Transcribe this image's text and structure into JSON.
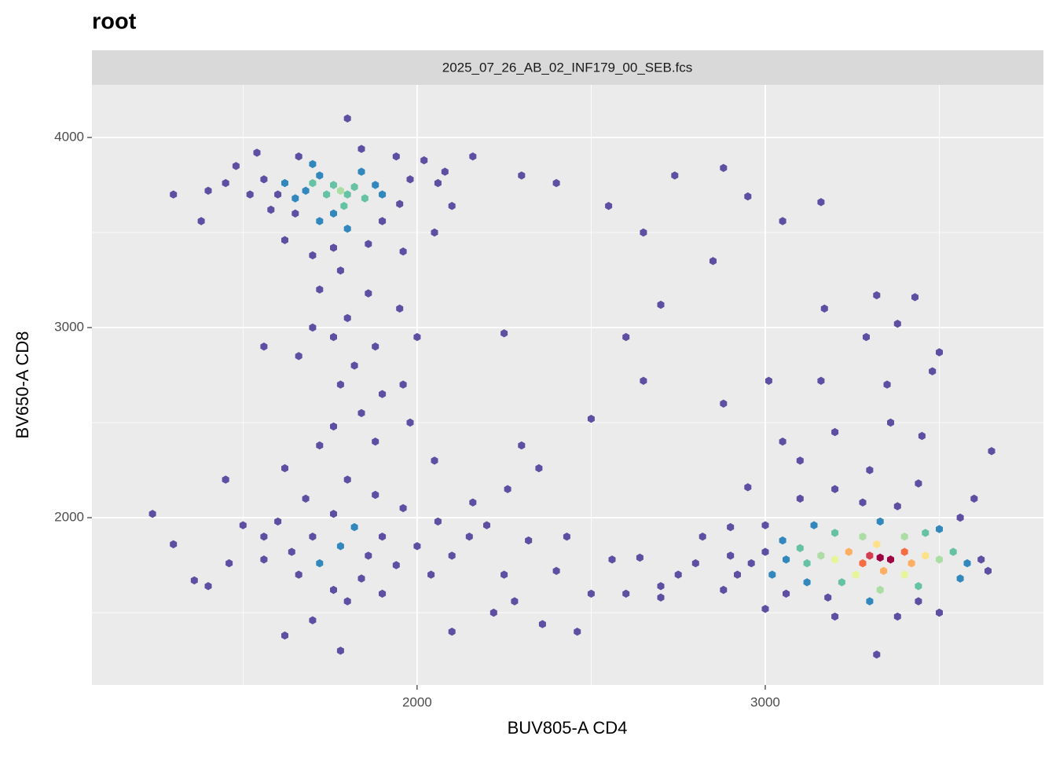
{
  "chart_data": {
    "type": "hexbin",
    "title": "root",
    "facet_label": "2025_07_26_AB_02_INF179_00_SEB.fcs",
    "x_label": "BUV805-A CD4",
    "y_label": "BV650-A CD8",
    "xlim": [
      1066,
      3799
    ],
    "ylim": [
      1120,
      4277
    ],
    "xticks": [
      2000,
      3000
    ],
    "yticks": [
      2000,
      3000,
      4000
    ],
    "x_minor_grid": [
      1500,
      2500,
      3500
    ],
    "y_minor_grid": [
      1500,
      2500,
      3500
    ],
    "grid": true,
    "palette": [
      "#5e4fa2",
      "#3288bd",
      "#66c2a5",
      "#abdda4",
      "#e6f598",
      "#fee08b",
      "#fdae61",
      "#f46d43",
      "#d53e4f",
      "#9e0142"
    ],
    "points": [
      [
        1780,
        3720,
        12
      ],
      [
        1760,
        3750,
        11
      ],
      [
        1800,
        3700,
        11
      ],
      [
        1740,
        3700,
        9
      ],
      [
        1820,
        3740,
        10
      ],
      [
        1700,
        3760,
        8
      ],
      [
        1850,
        3680,
        8
      ],
      [
        1680,
        3720,
        7
      ],
      [
        1880,
        3750,
        6
      ],
      [
        1720,
        3800,
        7
      ],
      [
        1790,
        3640,
        8
      ],
      [
        1760,
        3600,
        6
      ],
      [
        1650,
        3680,
        5
      ],
      [
        1900,
        3700,
        5
      ],
      [
        1620,
        3760,
        4
      ],
      [
        1840,
        3820,
        5
      ],
      [
        1700,
        3860,
        4
      ],
      [
        1600,
        3700,
        3
      ],
      [
        1560,
        3780,
        3
      ],
      [
        1950,
        3650,
        3
      ],
      [
        1980,
        3780,
        3
      ],
      [
        1900,
        3560,
        3
      ],
      [
        1800,
        3520,
        4
      ],
      [
        1720,
        3560,
        4
      ],
      [
        1650,
        3600,
        3
      ],
      [
        1580,
        3620,
        2
      ],
      [
        1520,
        3700,
        2
      ],
      [
        1480,
        3850,
        2
      ],
      [
        1450,
        3760,
        1
      ],
      [
        2020,
        3880,
        2
      ],
      [
        2060,
        3760,
        2
      ],
      [
        2100,
        3640,
        1
      ],
      [
        2080,
        3820,
        1
      ],
      [
        1940,
        3900,
        2
      ],
      [
        1840,
        3940,
        1
      ],
      [
        1660,
        3900,
        2
      ],
      [
        1540,
        3920,
        1
      ],
      [
        1400,
        3720,
        1
      ],
      [
        1300,
        3700,
        1
      ],
      [
        1760,
        3420,
        2
      ],
      [
        1700,
        3380,
        2
      ],
      [
        1860,
        3440,
        2
      ],
      [
        1960,
        3400,
        1
      ],
      [
        1620,
        3460,
        1
      ],
      [
        1800,
        4100,
        1
      ],
      [
        2050,
        3500,
        1
      ],
      [
        2160,
        3900,
        1
      ],
      [
        1380,
        3560,
        1
      ],
      [
        1780,
        3300,
        2
      ],
      [
        1720,
        3200,
        1
      ],
      [
        1860,
        3180,
        1
      ],
      [
        1800,
        3050,
        1
      ],
      [
        1760,
        2950,
        2
      ],
      [
        1700,
        3000,
        1
      ],
      [
        1880,
        2900,
        1
      ],
      [
        1820,
        2800,
        1
      ],
      [
        1660,
        2850,
        1
      ],
      [
        1900,
        2650,
        2
      ],
      [
        1780,
        2700,
        1
      ],
      [
        1840,
        2550,
        1
      ],
      [
        1760,
        2480,
        2
      ],
      [
        1880,
        2400,
        1
      ],
      [
        1720,
        2380,
        1
      ],
      [
        1560,
        2900,
        1
      ],
      [
        1960,
        2700,
        1
      ],
      [
        1950,
        3100,
        1
      ],
      [
        2000,
        2950,
        1
      ],
      [
        1760,
        2020,
        3
      ],
      [
        1820,
        1950,
        4
      ],
      [
        1700,
        1900,
        3
      ],
      [
        1780,
        1850,
        4
      ],
      [
        1860,
        1800,
        3
      ],
      [
        1640,
        1820,
        2
      ],
      [
        1720,
        1760,
        4
      ],
      [
        1900,
        1900,
        3
      ],
      [
        1960,
        2050,
        2
      ],
      [
        1600,
        1980,
        2
      ],
      [
        1560,
        1900,
        2
      ],
      [
        1680,
        2100,
        3
      ],
      [
        1880,
        2120,
        3
      ],
      [
        1800,
        2200,
        2
      ],
      [
        1940,
        1750,
        2
      ],
      [
        1840,
        1680,
        3
      ],
      [
        1760,
        1620,
        2
      ],
      [
        1660,
        1700,
        2
      ],
      [
        1560,
        1780,
        1
      ],
      [
        1500,
        1960,
        1
      ],
      [
        1460,
        1760,
        1
      ],
      [
        2000,
        1850,
        2
      ],
      [
        2060,
        1980,
        1
      ],
      [
        2040,
        1700,
        2
      ],
      [
        2100,
        1800,
        1
      ],
      [
        2150,
        1900,
        1
      ],
      [
        1900,
        1600,
        2
      ],
      [
        1800,
        1560,
        1
      ],
      [
        1700,
        1460,
        1
      ],
      [
        1620,
        1380,
        1
      ],
      [
        1780,
        1300,
        1
      ],
      [
        1360,
        1670,
        1
      ],
      [
        1300,
        1860,
        1
      ],
      [
        1240,
        2020,
        1
      ],
      [
        1400,
        1640,
        1
      ],
      [
        1450,
        2200,
        1
      ],
      [
        1620,
        2260,
        1
      ],
      [
        2200,
        1960,
        1
      ],
      [
        2250,
        1700,
        1
      ],
      [
        2320,
        1880,
        1
      ],
      [
        2280,
        1560,
        1
      ],
      [
        2400,
        1720,
        1
      ],
      [
        2360,
        1440,
        1
      ],
      [
        2460,
        1400,
        1
      ],
      [
        2430,
        1900,
        1
      ],
      [
        2100,
        1400,
        1
      ],
      [
        2220,
        1500,
        1
      ],
      [
        2500,
        1600,
        1
      ],
      [
        2160,
        2080,
        1
      ],
      [
        2260,
        2150,
        1
      ],
      [
        2050,
        2300,
        1
      ],
      [
        1980,
        2500,
        1
      ],
      [
        2300,
        2380,
        1
      ],
      [
        2300,
        3800,
        1
      ],
      [
        2400,
        3760,
        1
      ],
      [
        2550,
        3640,
        1
      ],
      [
        2650,
        3500,
        1
      ],
      [
        2740,
        3800,
        1
      ],
      [
        2880,
        3840,
        1
      ],
      [
        2950,
        3690,
        1
      ],
      [
        2850,
        3350,
        1
      ],
      [
        2700,
        3120,
        1
      ],
      [
        2600,
        2950,
        1
      ],
      [
        2650,
        2720,
        1
      ],
      [
        2880,
        2600,
        1
      ],
      [
        3050,
        3560,
        1
      ],
      [
        3160,
        3660,
        1
      ],
      [
        3170,
        3100,
        1
      ],
      [
        3320,
        3170,
        1
      ],
      [
        3430,
        3160,
        1
      ],
      [
        3380,
        3020,
        1
      ],
      [
        3500,
        2870,
        1
      ],
      [
        3290,
        2950,
        1
      ],
      [
        3010,
        2720,
        1
      ],
      [
        3160,
        2720,
        1
      ],
      [
        3350,
        2700,
        1
      ],
      [
        3480,
        2770,
        1
      ],
      [
        2250,
        2970,
        1
      ],
      [
        2500,
        2520,
        1
      ],
      [
        2350,
        2260,
        1
      ],
      [
        3330,
        1790,
        40
      ],
      [
        3300,
        1800,
        36
      ],
      [
        3360,
        1780,
        38
      ],
      [
        3280,
        1760,
        30
      ],
      [
        3400,
        1820,
        30
      ],
      [
        3240,
        1820,
        26
      ],
      [
        3420,
        1760,
        28
      ],
      [
        3200,
        1780,
        20
      ],
      [
        3460,
        1800,
        22
      ],
      [
        3320,
        1860,
        24
      ],
      [
        3340,
        1720,
        26
      ],
      [
        3160,
        1800,
        15
      ],
      [
        3500,
        1780,
        14
      ],
      [
        3260,
        1700,
        18
      ],
      [
        3400,
        1700,
        18
      ],
      [
        3280,
        1900,
        14
      ],
      [
        3400,
        1900,
        14
      ],
      [
        3120,
        1760,
        10
      ],
      [
        3540,
        1820,
        9
      ],
      [
        3100,
        1840,
        8
      ],
      [
        3200,
        1920,
        8
      ],
      [
        3460,
        1920,
        8
      ],
      [
        3220,
        1660,
        10
      ],
      [
        3440,
        1640,
        9
      ],
      [
        3330,
        1620,
        12
      ],
      [
        3060,
        1780,
        6
      ],
      [
        3580,
        1760,
        5
      ],
      [
        3050,
        1880,
        4
      ],
      [
        3140,
        1960,
        4
      ],
      [
        3330,
        1980,
        5
      ],
      [
        3500,
        1940,
        4
      ],
      [
        3020,
        1700,
        4
      ],
      [
        3120,
        1660,
        5
      ],
      [
        3560,
        1680,
        4
      ],
      [
        3300,
        1560,
        4
      ],
      [
        3180,
        1580,
        3
      ],
      [
        3440,
        1560,
        3
      ],
      [
        3000,
        1820,
        3
      ],
      [
        2960,
        1760,
        2
      ],
      [
        3620,
        1780,
        2
      ],
      [
        3640,
        1720,
        1
      ],
      [
        2920,
        1700,
        2
      ],
      [
        2900,
        1800,
        2
      ],
      [
        3000,
        1960,
        2
      ],
      [
        3280,
        2080,
        2
      ],
      [
        3380,
        2060,
        2
      ],
      [
        3200,
        2150,
        1
      ],
      [
        3440,
        2180,
        1
      ],
      [
        3300,
        2250,
        1
      ],
      [
        3100,
        2100,
        1
      ],
      [
        3560,
        2000,
        1
      ],
      [
        3600,
        2100,
        1
      ],
      [
        3060,
        1600,
        1
      ],
      [
        3000,
        1520,
        1
      ],
      [
        3380,
        1480,
        1
      ],
      [
        3200,
        1480,
        1
      ],
      [
        3500,
        1500,
        1
      ],
      [
        3320,
        1280,
        1
      ],
      [
        2880,
        1620,
        1
      ],
      [
        2800,
        1760,
        1
      ],
      [
        2750,
        1700,
        1
      ],
      [
        2700,
        1640,
        1
      ],
      [
        2640,
        1790,
        1
      ],
      [
        2560,
        1780,
        1
      ],
      [
        2600,
        1600,
        1
      ],
      [
        2700,
        1580,
        1
      ],
      [
        2820,
        1900,
        1
      ],
      [
        2900,
        1950,
        1
      ],
      [
        2950,
        2160,
        1
      ],
      [
        3050,
        2400,
        1
      ],
      [
        3200,
        2450,
        1
      ],
      [
        3360,
        2500,
        1
      ],
      [
        3450,
        2430,
        1
      ],
      [
        3650,
        2350,
        1
      ],
      [
        3100,
        2300,
        1
      ]
    ]
  }
}
